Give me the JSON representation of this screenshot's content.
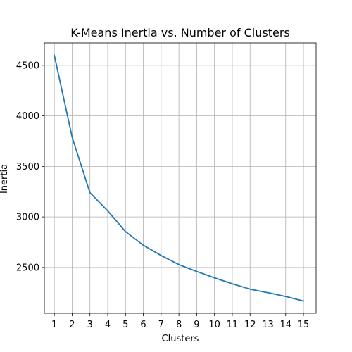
{
  "chart_data": {
    "type": "line",
    "title": "K-Means Inertia vs. Number of Clusters",
    "xlabel": "Clusters",
    "ylabel": "Inertia",
    "x": [
      1,
      2,
      3,
      4,
      5,
      6,
      7,
      8,
      9,
      10,
      11,
      12,
      13,
      14,
      15
    ],
    "x_tick_labels": [
      "1",
      "2",
      "3",
      "4",
      "5",
      "6",
      "7",
      "8",
      "9",
      "10",
      "11",
      "12",
      "13",
      "14",
      "15"
    ],
    "series": [
      {
        "values": [
          4600,
          3790,
          3240,
          3060,
          2855,
          2720,
          2618,
          2528,
          2460,
          2397,
          2338,
          2285,
          2250,
          2212,
          2168
        ],
        "color": "#1f77b4"
      }
    ],
    "y_ticks": [
      2500,
      3000,
      3500,
      4000,
      4500
    ],
    "y_tick_labels": [
      "2500",
      "3000",
      "3500",
      "4000",
      "4500"
    ],
    "xlim": [
      0.44,
      15.71
    ],
    "ylim": [
      2046,
      4722
    ],
    "grid": true,
    "legend": "none"
  }
}
